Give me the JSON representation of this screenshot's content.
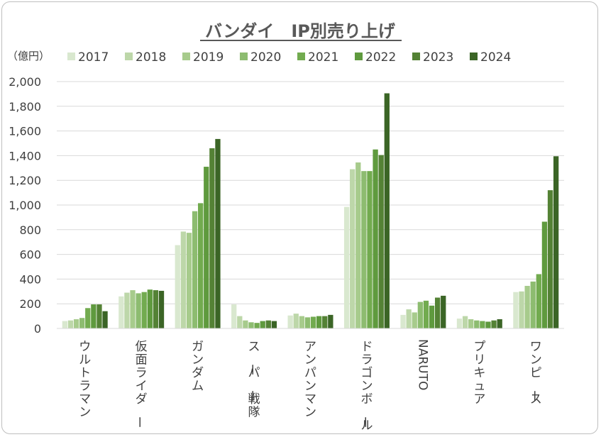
{
  "chart_data": {
    "type": "bar",
    "title": "バンダイ　IP別売り上げ",
    "ylabel": "（億円）",
    "xlabel": "",
    "ylim": [
      0,
      2000
    ],
    "yticks": [
      0,
      200,
      400,
      600,
      800,
      1000,
      1200,
      1400,
      1600,
      1800,
      2000
    ],
    "ytick_labels": [
      "0",
      "200",
      "400",
      "600",
      "800",
      "1,000",
      "1,200",
      "1,400",
      "1,600",
      "1,800",
      "2,000"
    ],
    "grid": true,
    "legend_position": "top",
    "categories": [
      "ウルトラマン",
      "仮面ライダー",
      "ガンダム",
      "スーパー戦隊",
      "アンパンマン",
      "ドラゴンボール",
      "NARUTO",
      "プリキュア",
      "ワンピース"
    ],
    "series": [
      {
        "name": "2017",
        "color": "#d9e8cf",
        "values": [
          60,
          260,
          675,
          195,
          105,
          985,
          110,
          80,
          295
        ]
      },
      {
        "name": "2018",
        "color": "#bdd7a9",
        "values": [
          65,
          290,
          785,
          100,
          120,
          1290,
          155,
          100,
          300
        ]
      },
      {
        "name": "2019",
        "color": "#a7cb8c",
        "values": [
          75,
          310,
          775,
          65,
          100,
          1345,
          130,
          75,
          345
        ]
      },
      {
        "name": "2020",
        "color": "#8dbc70",
        "values": [
          85,
          285,
          950,
          50,
          90,
          1275,
          215,
          65,
          380
        ]
      },
      {
        "name": "2021",
        "color": "#72ab4f",
        "values": [
          165,
          295,
          1015,
          45,
          95,
          1275,
          225,
          60,
          440
        ]
      },
      {
        "name": "2022",
        "color": "#5f9a3e",
        "values": [
          195,
          315,
          1310,
          60,
          100,
          1450,
          185,
          55,
          865
        ]
      },
      {
        "name": "2023",
        "color": "#548235",
        "values": [
          195,
          310,
          1460,
          65,
          100,
          1405,
          250,
          65,
          1120
        ]
      },
      {
        "name": "2024",
        "color": "#3b6526",
        "values": [
          140,
          305,
          1535,
          60,
          110,
          1905,
          265,
          75,
          1395
        ]
      }
    ]
  }
}
